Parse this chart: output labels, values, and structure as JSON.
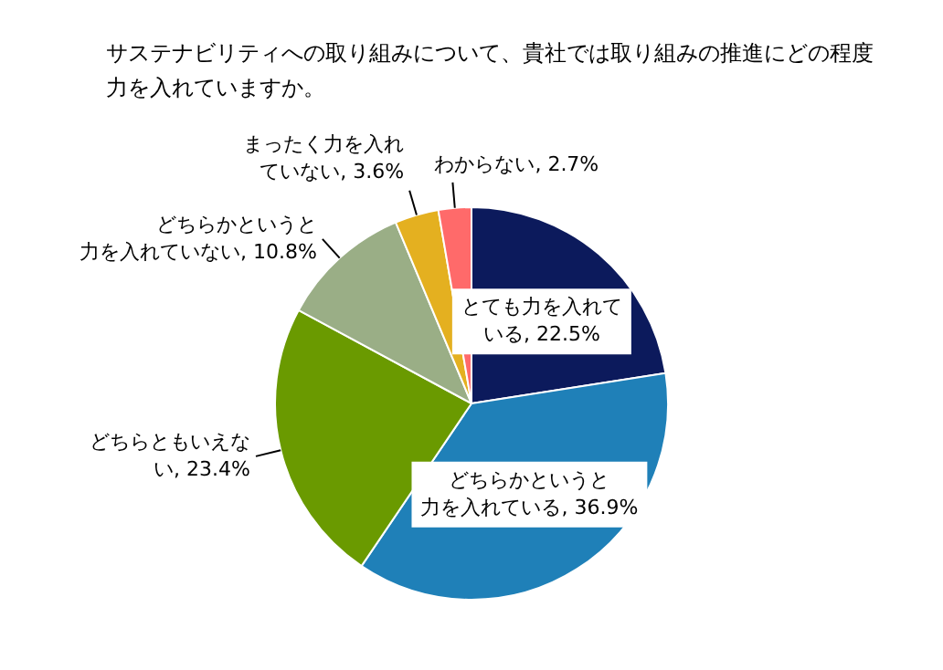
{
  "chart_data": {
    "type": "pie",
    "title": "サステナビリティへの取り組みについて、貴社では取り組みの推進にどの程度力を入れていますか。",
    "categories": [
      "とても力を入れている",
      "どちらかというと力を入れている",
      "どちらともいえない",
      "どちらかというと力を入れていない",
      "まったく力を入れていない",
      "わからない"
    ],
    "values": [
      22.5,
      36.9,
      23.4,
      10.8,
      3.6,
      2.7
    ],
    "value_labels": [
      "22.5%",
      "36.9%",
      "23.4%",
      "10.8%",
      "3.6%",
      "2.7%"
    ],
    "colors": [
      "#0c1a5c",
      "#1f80b8",
      "#6a9a00",
      "#9aae86",
      "#e4b020",
      "#ff6a6a"
    ],
    "legend": false
  }
}
